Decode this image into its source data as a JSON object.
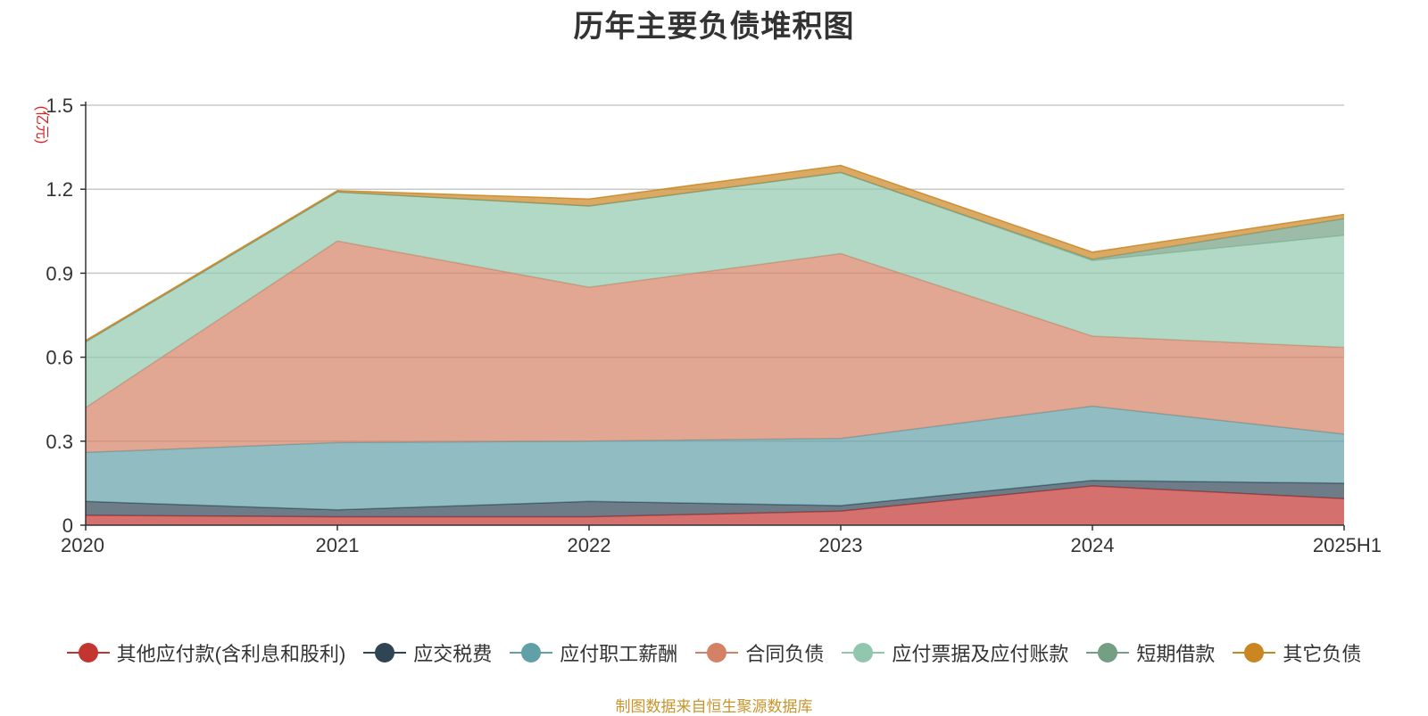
{
  "chart_data": {
    "type": "area",
    "stacked": true,
    "title": "历年主要负债堆积图",
    "ylabel": "(亿元)",
    "xlabel": "",
    "ylim": [
      0,
      1.5
    ],
    "yticks": [
      "0",
      "0.3",
      "0.6",
      "0.9",
      "1.2",
      "1.5"
    ],
    "categories": [
      "2020",
      "2021",
      "2022",
      "2023",
      "2024",
      "2025H1"
    ],
    "grid": true,
    "legend_position": "bottom",
    "series": [
      {
        "name": "其他应付款(含利息和股利)",
        "color": "#c23531",
        "values": [
          0.035,
          0.03,
          0.03,
          0.05,
          0.14,
          0.095
        ]
      },
      {
        "name": "应交税费",
        "color": "#2f4554",
        "values": [
          0.05,
          0.025,
          0.055,
          0.02,
          0.02,
          0.055
        ]
      },
      {
        "name": "应付职工薪酬",
        "color": "#61a0a8",
        "values": [
          0.175,
          0.24,
          0.215,
          0.24,
          0.265,
          0.175
        ]
      },
      {
        "name": "合同负债",
        "color": "#d48265",
        "values": [
          0.16,
          0.72,
          0.55,
          0.66,
          0.25,
          0.31
        ]
      },
      {
        "name": "应付票据及应付账款",
        "color": "#91c7ae",
        "values": [
          0.235,
          0.175,
          0.29,
          0.29,
          0.27,
          0.4
        ]
      },
      {
        "name": "短期借款",
        "color": "#749f83",
        "values": [
          0.0,
          0.0,
          0.0,
          0.0,
          0.005,
          0.06
        ]
      },
      {
        "name": "其它负债",
        "color": "#ca8622",
        "values": [
          0.005,
          0.005,
          0.025,
          0.025,
          0.025,
          0.015
        ]
      }
    ]
  },
  "footer": {
    "source": "制图数据来自恒生聚源数据库"
  }
}
